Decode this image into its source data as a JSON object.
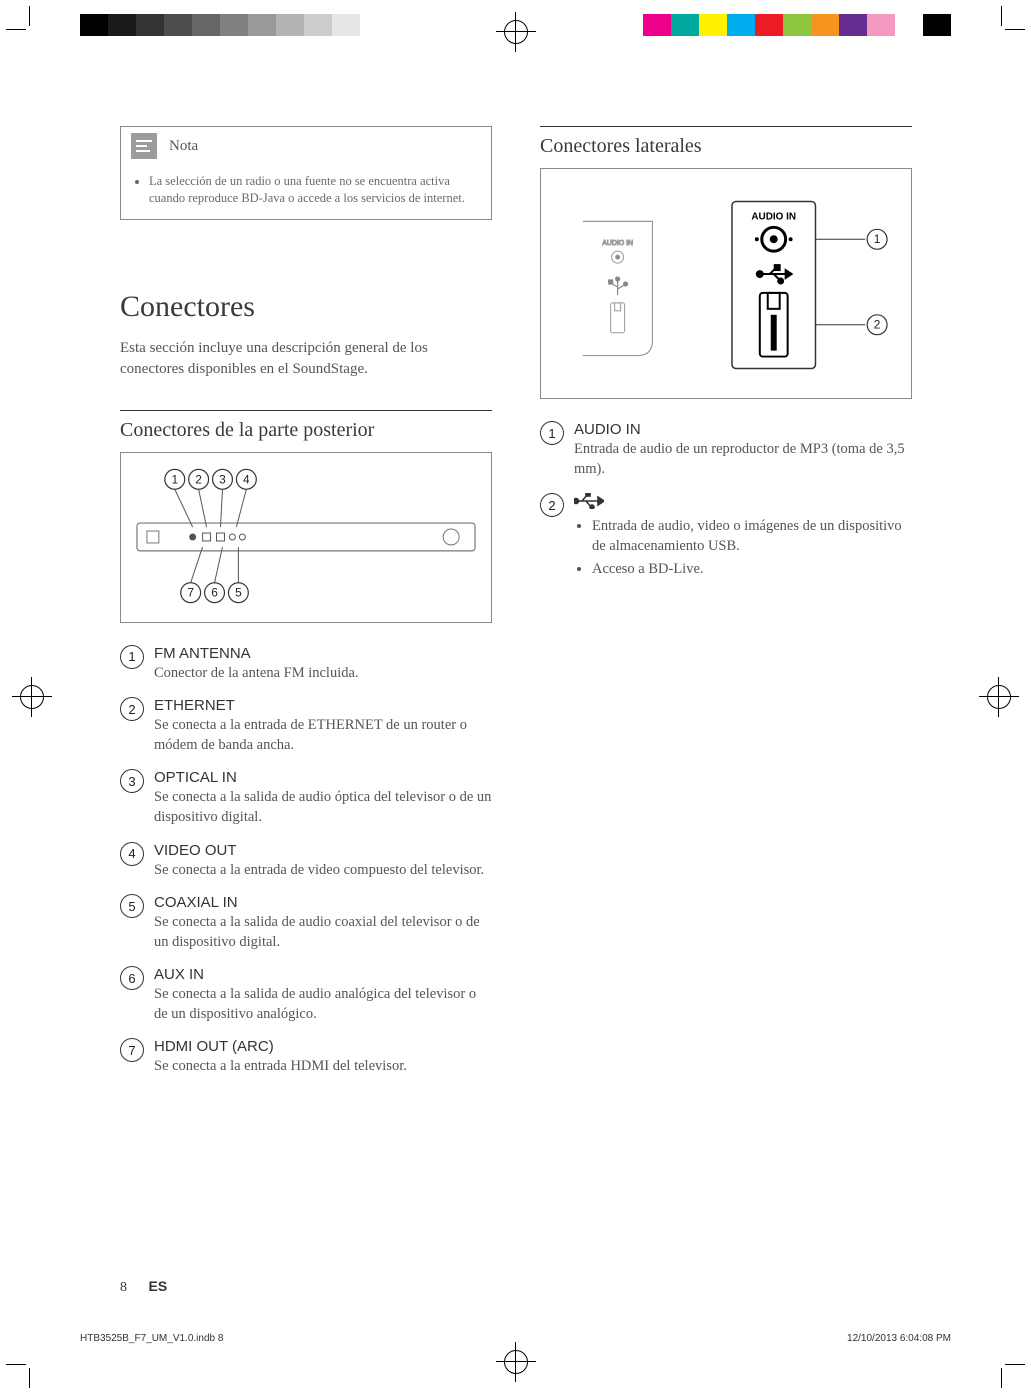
{
  "print_marks": {
    "grayscale_swatches": [
      "#000000",
      "#1a1a1a",
      "#333333",
      "#4d4d4d",
      "#666666",
      "#808080",
      "#999999",
      "#b3b3b3",
      "#cccccc",
      "#e6e6e6",
      "#ffffff"
    ],
    "color_swatches": [
      "#ec008c",
      "#00a99d",
      "#fff200",
      "#00aeef",
      "#ed1c24",
      "#8dc63f",
      "#f7941d",
      "#662d91",
      "#f49ac1",
      "#ffffff",
      "#000000"
    ]
  },
  "note": {
    "title": "Nota",
    "text": "La selección de un radio o una fuente no se encuentra activa cuando reproduce BD-Java o accede a los servicios de internet."
  },
  "section_title": "Conectores",
  "intro": "Esta sección incluye una descripción general de los conectores disponibles en el SoundStage.",
  "rear": {
    "heading": "Conectores de la parte posterior",
    "top_markers": [
      "1",
      "2",
      "3",
      "4"
    ],
    "bottom_markers": [
      "7",
      "6",
      "5"
    ],
    "items": [
      {
        "n": "1",
        "label": "FM ANTENNA",
        "desc": "Conector de la antena FM incluida."
      },
      {
        "n": "2",
        "label": "ETHERNET",
        "desc": "Se conecta a la entrada de ETHERNET de un router o módem de banda ancha."
      },
      {
        "n": "3",
        "label": "OPTICAL IN",
        "desc": "Se conecta a la salida de audio óptica del televisor o de un dispositivo digital."
      },
      {
        "n": "4",
        "label": "VIDEO OUT",
        "desc": "Se conecta a la entrada de video compuesto del televisor."
      },
      {
        "n": "5",
        "label": "COAXIAL IN",
        "desc": "Se conecta a la salida de audio coaxial del televisor o de un dispositivo digital."
      },
      {
        "n": "6",
        "label": "AUX IN",
        "desc": "Se conecta a la salida de audio analógica del televisor o de un dispositivo analógico."
      },
      {
        "n": "7",
        "label": "HDMI OUT (ARC)",
        "desc": "Se conecta a la entrada HDMI del televisor."
      }
    ]
  },
  "side": {
    "heading": "Conectores laterales",
    "panel_label": "AUDIO IN",
    "small_panel_label": "AUDIO IN",
    "markers": [
      "1",
      "2"
    ],
    "items": [
      {
        "n": "1",
        "label": "AUDIO IN",
        "desc": "Entrada de audio de un reproductor de MP3 (toma de 3,5 mm)."
      },
      {
        "n": "2",
        "label_icon": "usb-icon",
        "bullets": [
          "Entrada de audio, video o imágenes de un dispositivo de almacenamiento USB.",
          "Acceso a BD-Live."
        ]
      }
    ]
  },
  "footer": {
    "page": "8",
    "lang": "ES"
  },
  "print_footer": {
    "file": "HTB3525B_F7_UM_V1.0.indb   8",
    "stamp": "12/10/2013   6:04:08 PM"
  },
  "colors": {
    "text": "#4a4a4a",
    "heading": "#3a3a3a",
    "border": "#888888",
    "rule": "#333333",
    "note_icon_bg": "#9c9c9c"
  }
}
